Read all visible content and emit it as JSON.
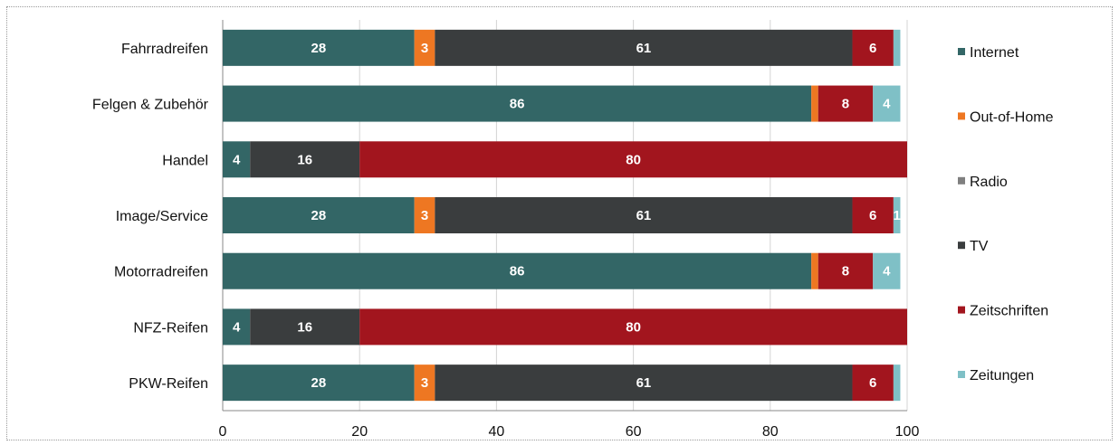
{
  "chart_data": {
    "type": "bar",
    "orientation": "horizontal",
    "stacked": true,
    "categories": [
      "Fahrradreifen",
      "Felgen & Zubehör",
      "Handel",
      "Image/Service",
      "Motorradreifen",
      "NFZ-Reifen",
      "PKW-Reifen"
    ],
    "series": [
      {
        "name": "Internet",
        "color": "#336666",
        "values": [
          28,
          86,
          4,
          28,
          86,
          4,
          28
        ]
      },
      {
        "name": "Out-of-Home",
        "color": "#ee7722",
        "values": [
          3,
          1,
          0,
          3,
          1,
          0,
          3
        ]
      },
      {
        "name": "Radio",
        "color": "#7f7f7f",
        "values": [
          0,
          0,
          0,
          0,
          0,
          0,
          0
        ]
      },
      {
        "name": "TV",
        "color": "#3a3d3e",
        "values": [
          61,
          0,
          16,
          61,
          0,
          16,
          61
        ]
      },
      {
        "name": "Zeitschriften",
        "color": "#a2151e",
        "values": [
          6,
          8,
          80,
          6,
          8,
          80,
          6
        ]
      },
      {
        "name": "Zeitungen",
        "color": "#7fc0c6",
        "values": [
          1,
          4,
          0,
          1,
          4,
          0,
          1
        ]
      }
    ],
    "data_labels": [
      [
        "28",
        "3",
        "",
        "61",
        "6",
        ""
      ],
      [
        "86",
        "",
        "",
        "",
        "8",
        "4"
      ],
      [
        "4",
        "",
        "",
        "16",
        "80",
        ""
      ],
      [
        "28",
        "3",
        "",
        "61",
        "6",
        "1"
      ],
      [
        "86",
        "",
        "",
        "",
        "8",
        "4"
      ],
      [
        "4",
        "",
        "",
        "16",
        "80",
        ""
      ],
      [
        "28",
        "3",
        "",
        "61",
        "6",
        ""
      ]
    ],
    "xlim": [
      0,
      100
    ],
    "xticks": [
      "0",
      "20",
      "40",
      "60",
      "80",
      "100"
    ],
    "title": "",
    "xlabel": "",
    "ylabel": "",
    "grid": "vertical",
    "legend_position": "right"
  }
}
